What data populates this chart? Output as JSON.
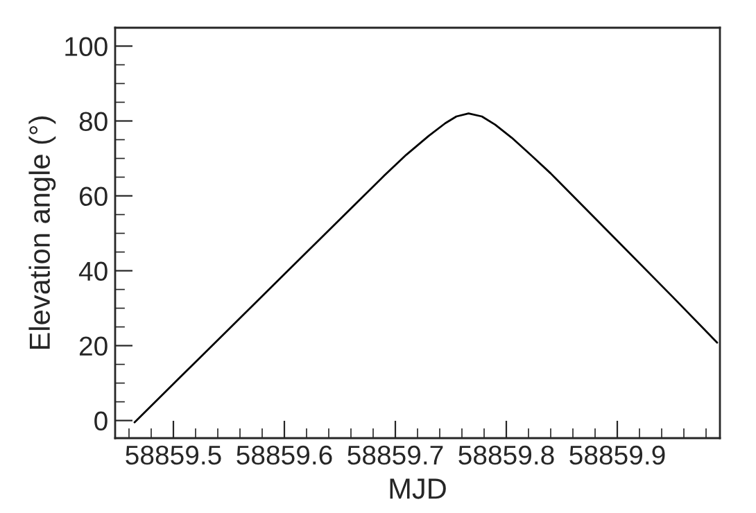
{
  "chart_data": {
    "type": "line",
    "xlabel": "MJD",
    "ylabel": "Elevation angle (°)",
    "xlim": [
      58859.4475,
      58859.9925
    ],
    "xticks": [
      {
        "value": 58859.5,
        "label": "58859.5"
      },
      {
        "value": 58859.6,
        "label": "58859.6"
      },
      {
        "value": 58859.7,
        "label": "58859.7"
      },
      {
        "value": 58859.8,
        "label": "58859.8"
      },
      {
        "value": 58859.9,
        "label": "58859.9"
      }
    ],
    "ylim": [
      -4.7,
      104.9
    ],
    "yticks": [
      0,
      20,
      40,
      60,
      80,
      100
    ],
    "grid": false,
    "legend": false,
    "series": [
      {
        "color": "#000000",
        "x": [
          58859.465,
          58859.5,
          58859.55,
          58859.6,
          58859.65,
          58859.69,
          58859.71,
          58859.73,
          58859.745,
          58859.755,
          58859.766,
          58859.778,
          58859.79,
          58859.805,
          58859.82,
          58859.84,
          58859.86,
          58859.9,
          58859.95,
          58859.99
        ],
        "values": [
          -0.5,
          9.8,
          24.4,
          39.1,
          53.7,
          65.4,
          71.0,
          76.0,
          79.4,
          81.2,
          82.0,
          81.2,
          79.0,
          75.5,
          71.5,
          66.0,
          60.0,
          48.0,
          33.0,
          20.8
        ]
      }
    ]
  }
}
